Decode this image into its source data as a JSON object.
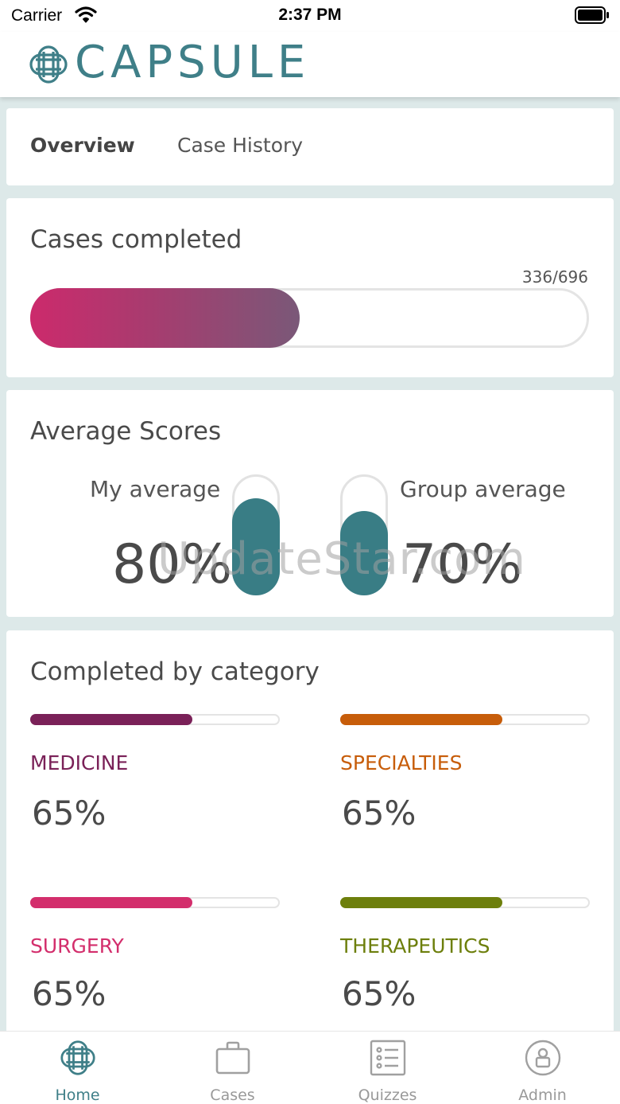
{
  "status_bar": {
    "carrier": "Carrier",
    "time": "2:37 PM",
    "wifi_icon": "wifi-icon",
    "battery_icon": "battery-icon"
  },
  "header": {
    "logo_text": "CAPSULE",
    "logo_icon": "capsule-logo-icon"
  },
  "tabs": {
    "overview": "Overview",
    "case_history": "Case History",
    "active": "Overview"
  },
  "cases_completed": {
    "title": "Cases completed",
    "count": "336/696",
    "completed": 336,
    "total": 696,
    "colors": {
      "start": "#cc2a6c",
      "end": "#7a5878"
    }
  },
  "average_scores": {
    "title": "Average Scores",
    "my_label": "My average",
    "my_value": "80%",
    "my_level": 0.8,
    "group_label": "Group average",
    "group_value": "70%",
    "group_level": 0.7,
    "pill_color": "#397d85"
  },
  "watermark": "UpdateStar.com",
  "categories": {
    "title": "Completed by category",
    "items": [
      {
        "name": "MEDICINE",
        "value": "65%",
        "level": 0.65,
        "color": "#7a2158"
      },
      {
        "name": "SPECIALTIES",
        "value": "65%",
        "level": 0.65,
        "color": "#c75d0a"
      },
      {
        "name": "SURGERY",
        "value": "65%",
        "level": 0.65,
        "color": "#d32e6c"
      },
      {
        "name": "THERAPEUTICS",
        "value": "65%",
        "level": 0.65,
        "color": "#6d7f0c"
      }
    ]
  },
  "tab_bar": {
    "items": [
      {
        "label": "Home",
        "icon": "home-globe-icon",
        "active": true
      },
      {
        "label": "Cases",
        "icon": "briefcase-icon",
        "active": false
      },
      {
        "label": "Quizzes",
        "icon": "list-icon",
        "active": false
      },
      {
        "label": "Admin",
        "icon": "user-circle-icon",
        "active": false
      }
    ],
    "active_color": "#3f7f88",
    "inactive_color": "#999999"
  }
}
